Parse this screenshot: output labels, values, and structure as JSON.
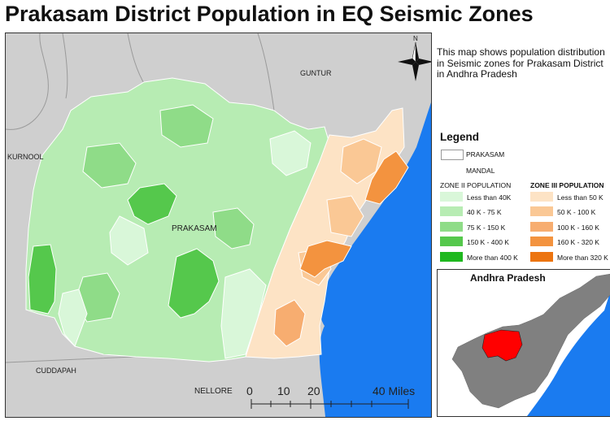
{
  "title": "Prakasam District Population in EQ Seismic Zones",
  "description": "This map shows population distribution in Seismic zones for Prakasam District in Andhra Pradesh",
  "map": {
    "north_label": "N",
    "labels": {
      "guntur": "GUNTUR",
      "kurnool": "KURNOOL",
      "prakasam": "PRAKASAM",
      "cuddapah": "CUDDAPAH",
      "nellore": "NELLORE"
    },
    "scale": {
      "ticks": [
        "0",
        "10",
        "20",
        "40 Miles"
      ]
    }
  },
  "legend": {
    "title": "Legend",
    "prakasam": "PRAKASAM",
    "mandal": "MANDAL",
    "zone2": {
      "header": "ZONE II POPULATION",
      "items": [
        {
          "label": "Less than 40K",
          "color": "#d9f7d9"
        },
        {
          "label": "40 K - 75 K",
          "color": "#b7ecb3"
        },
        {
          "label": "75 K - 150 K",
          "color": "#8fdc88"
        },
        {
          "label": "150 K - 400 K",
          "color": "#55c84c"
        },
        {
          "label": "More than 400 K",
          "color": "#1fb81f"
        }
      ]
    },
    "zone3": {
      "header": "ZONE III POPULATION",
      "items": [
        {
          "label": "Less than 50 K",
          "color": "#fde3c5"
        },
        {
          "label": "50 K - 100 K",
          "color": "#fac895"
        },
        {
          "label": "100 K - 160 K",
          "color": "#f7ad70"
        },
        {
          "label": "160 K - 320 K",
          "color": "#f3933f"
        },
        {
          "label": "More than 320 K",
          "color": "#ec7410"
        }
      ]
    }
  },
  "inset": {
    "title": "Andhra Pradesh"
  },
  "colors": {
    "sea": "#1a7bf0",
    "land": "#cfcfcf",
    "highlight": "#ff0000",
    "state": "#808080"
  }
}
